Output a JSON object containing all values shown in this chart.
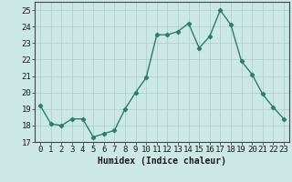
{
  "x": [
    0,
    1,
    2,
    3,
    4,
    5,
    6,
    7,
    8,
    9,
    10,
    11,
    12,
    13,
    14,
    15,
    16,
    17,
    18,
    19,
    20,
    21,
    22,
    23
  ],
  "y": [
    19.2,
    18.1,
    18.0,
    18.4,
    18.4,
    17.3,
    17.5,
    17.7,
    19.0,
    20.0,
    20.9,
    23.5,
    23.5,
    23.7,
    24.2,
    22.7,
    23.4,
    25.0,
    24.1,
    21.9,
    21.1,
    19.9,
    19.1,
    18.4
  ],
  "line_color": "#2d7d6e",
  "marker": "D",
  "marker_size": 2.2,
  "line_width": 1.0,
  "bg_color": "#cce8e4",
  "grid_color": "#aacccc",
  "xlabel": "Humidex (Indice chaleur)",
  "xlim": [
    -0.5,
    23.5
  ],
  "ylim": [
    17,
    25.5
  ],
  "yticks": [
    17,
    18,
    19,
    20,
    21,
    22,
    23,
    24,
    25
  ],
  "xticks": [
    0,
    1,
    2,
    3,
    4,
    5,
    6,
    7,
    8,
    9,
    10,
    11,
    12,
    13,
    14,
    15,
    16,
    17,
    18,
    19,
    20,
    21,
    22,
    23
  ],
  "xlabel_fontsize": 7.0,
  "tick_fontsize": 6.5
}
